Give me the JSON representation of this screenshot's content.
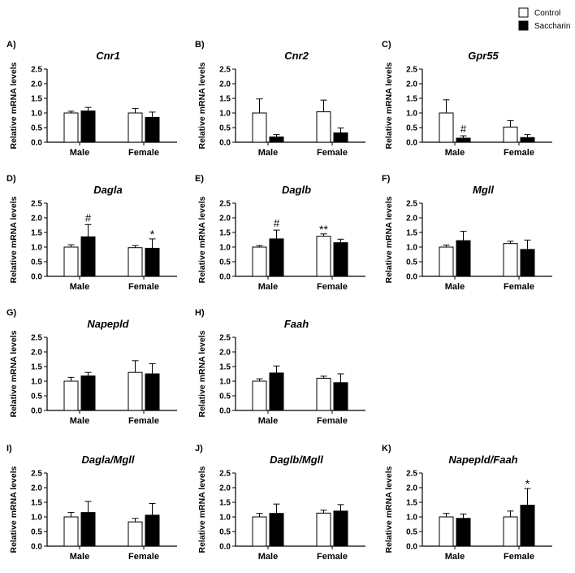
{
  "legend": {
    "items": [
      {
        "label": "Control",
        "fill": "#ffffff"
      },
      {
        "label": "Saccharin",
        "fill": "#000000"
      }
    ]
  },
  "colors": {
    "control": "#ffffff",
    "saccharin": "#000000",
    "stroke": "#000000"
  },
  "chart_data": [
    {
      "type": "bar",
      "panel": "A)",
      "title": "Cnr1",
      "ylabel": "Relative mRNA levels",
      "categories": [
        "Male",
        "Female"
      ],
      "ylim": [
        0,
        2.5
      ],
      "yticks": [
        "0.0",
        "0.5",
        "1.0",
        "1.5",
        "2.0",
        "2.5"
      ],
      "series": [
        {
          "name": "Control",
          "values": [
            1.0,
            1.0
          ],
          "errors": [
            0.06,
            0.15
          ]
        },
        {
          "name": "Saccharin",
          "values": [
            1.07,
            0.85
          ],
          "errors": [
            0.12,
            0.18
          ]
        }
      ],
      "annotations": []
    },
    {
      "type": "bar",
      "panel": "B)",
      "title": "Cnr2",
      "ylabel": "Relative mRNA levels",
      "categories": [
        "Male",
        "Female"
      ],
      "ylim": [
        0,
        2.5
      ],
      "yticks": [
        "0.0",
        "0.5",
        "1.0",
        "1.5",
        "2.0",
        "2.5"
      ],
      "series": [
        {
          "name": "Control",
          "values": [
            1.0,
            1.04
          ],
          "errors": [
            0.48,
            0.4
          ]
        },
        {
          "name": "Saccharin",
          "values": [
            0.18,
            0.32
          ],
          "errors": [
            0.08,
            0.17
          ]
        }
      ],
      "annotations": []
    },
    {
      "type": "bar",
      "panel": "C)",
      "title": "Gpr55",
      "ylabel": "Relative mRNA levels",
      "categories": [
        "Male",
        "Female"
      ],
      "ylim": [
        0,
        2.5
      ],
      "yticks": [
        "0.0",
        "0.5",
        "1.0",
        "1.5",
        "2.0",
        "2.5"
      ],
      "series": [
        {
          "name": "Control",
          "values": [
            1.0,
            0.52
          ],
          "errors": [
            0.45,
            0.22
          ]
        },
        {
          "name": "Saccharin",
          "values": [
            0.14,
            0.16
          ],
          "errors": [
            0.08,
            0.1
          ]
        }
      ],
      "annotations": [
        {
          "text": "#",
          "category": 0,
          "series": 1
        }
      ]
    },
    {
      "type": "bar",
      "panel": "D)",
      "title": "Dagla",
      "ylabel": "Relative mRNA levels",
      "categories": [
        "Male",
        "Female"
      ],
      "ylim": [
        0,
        2.5
      ],
      "yticks": [
        "0.0",
        "0.5",
        "1.0",
        "1.5",
        "2.0",
        "2.5"
      ],
      "series": [
        {
          "name": "Control",
          "values": [
            1.0,
            0.98
          ],
          "errors": [
            0.08,
            0.07
          ]
        },
        {
          "name": "Saccharin",
          "values": [
            1.35,
            0.96
          ],
          "errors": [
            0.42,
            0.32
          ]
        }
      ],
      "annotations": [
        {
          "text": "#",
          "category": 0,
          "series": 1
        },
        {
          "text": "*",
          "category": 1,
          "series": 1
        }
      ]
    },
    {
      "type": "bar",
      "panel": "E)",
      "title": "Daglb",
      "ylabel": "Relative mRNA levels",
      "categories": [
        "Male",
        "Female"
      ],
      "ylim": [
        0,
        2.5
      ],
      "yticks": [
        "0.0",
        "0.5",
        "1.0",
        "1.5",
        "2.0",
        "2.5"
      ],
      "series": [
        {
          "name": "Control",
          "values": [
            1.0,
            1.37
          ],
          "errors": [
            0.05,
            0.08
          ]
        },
        {
          "name": "Saccharin",
          "values": [
            1.28,
            1.15
          ],
          "errors": [
            0.3,
            0.12
          ]
        }
      ],
      "annotations": [
        {
          "text": "#",
          "category": 0,
          "series": 1
        },
        {
          "text": "**",
          "category": 1,
          "series": 0
        }
      ]
    },
    {
      "type": "bar",
      "panel": "F)",
      "title": "Mgll",
      "ylabel": "Relative mRNA levels",
      "categories": [
        "Male",
        "Female"
      ],
      "ylim": [
        0,
        2.5
      ],
      "yticks": [
        "0.0",
        "0.5",
        "1.0",
        "1.5",
        "2.0",
        "2.5"
      ],
      "series": [
        {
          "name": "Control",
          "values": [
            1.0,
            1.12
          ],
          "errors": [
            0.07,
            0.08
          ]
        },
        {
          "name": "Saccharin",
          "values": [
            1.22,
            0.92
          ],
          "errors": [
            0.32,
            0.32
          ]
        }
      ],
      "annotations": []
    },
    {
      "type": "bar",
      "panel": "G)",
      "title": "Napepld",
      "ylabel": "Relative mRNA levels",
      "categories": [
        "Male",
        "Female"
      ],
      "ylim": [
        0,
        2.5
      ],
      "yticks": [
        "0.0",
        "0.5",
        "1.0",
        "1.5",
        "2.0",
        "2.5"
      ],
      "series": [
        {
          "name": "Control",
          "values": [
            1.0,
            1.3
          ],
          "errors": [
            0.13,
            0.4
          ]
        },
        {
          "name": "Saccharin",
          "values": [
            1.18,
            1.25
          ],
          "errors": [
            0.12,
            0.35
          ]
        }
      ],
      "annotations": []
    },
    {
      "type": "bar",
      "panel": "H)",
      "title": "Faah",
      "ylabel": "Relative mRNA levels",
      "categories": [
        "Male",
        "Female"
      ],
      "ylim": [
        0,
        2.5
      ],
      "yticks": [
        "0.0",
        "0.5",
        "1.0",
        "1.5",
        "2.0",
        "2.5"
      ],
      "series": [
        {
          "name": "Control",
          "values": [
            1.0,
            1.1
          ],
          "errors": [
            0.08,
            0.07
          ]
        },
        {
          "name": "Saccharin",
          "values": [
            1.28,
            0.95
          ],
          "errors": [
            0.24,
            0.3
          ]
        }
      ],
      "annotations": []
    },
    {
      "type": "bar",
      "panel": "I)",
      "title": "Dagla/Mgll",
      "ylabel": "Relative mRNA levels",
      "categories": [
        "Male",
        "Female"
      ],
      "ylim": [
        0,
        2.5
      ],
      "yticks": [
        "0.0",
        "0.5",
        "1.0",
        "1.5",
        "2.0",
        "2.5"
      ],
      "series": [
        {
          "name": "Control",
          "values": [
            1.0,
            0.83
          ],
          "errors": [
            0.15,
            0.12
          ]
        },
        {
          "name": "Saccharin",
          "values": [
            1.15,
            1.06
          ],
          "errors": [
            0.38,
            0.4
          ]
        }
      ],
      "annotations": []
    },
    {
      "type": "bar",
      "panel": "J)",
      "title": "Daglb/Mgll",
      "ylabel": "Relative mRNA levels",
      "categories": [
        "Male",
        "Female"
      ],
      "ylim": [
        0,
        2.5
      ],
      "yticks": [
        "0.0",
        "0.5",
        "1.0",
        "1.5",
        "2.0",
        "2.5"
      ],
      "series": [
        {
          "name": "Control",
          "values": [
            1.0,
            1.13
          ],
          "errors": [
            0.12,
            0.1
          ]
        },
        {
          "name": "Saccharin",
          "values": [
            1.12,
            1.2
          ],
          "errors": [
            0.32,
            0.22
          ]
        }
      ],
      "annotations": []
    },
    {
      "type": "bar",
      "panel": "K)",
      "title": "Napepld/Faah",
      "ylabel": "Relative mRNA levels",
      "categories": [
        "Male",
        "Female"
      ],
      "ylim": [
        0,
        2.5
      ],
      "yticks": [
        "0.0",
        "0.5",
        "1.0",
        "1.5",
        "2.0",
        "2.5"
      ],
      "series": [
        {
          "name": "Control",
          "values": [
            1.0,
            1.0
          ],
          "errors": [
            0.12,
            0.2
          ]
        },
        {
          "name": "Saccharin",
          "values": [
            0.95,
            1.4
          ],
          "errors": [
            0.15,
            0.57
          ]
        }
      ],
      "annotations": [
        {
          "text": "*",
          "category": 1,
          "series": 1
        }
      ]
    }
  ]
}
